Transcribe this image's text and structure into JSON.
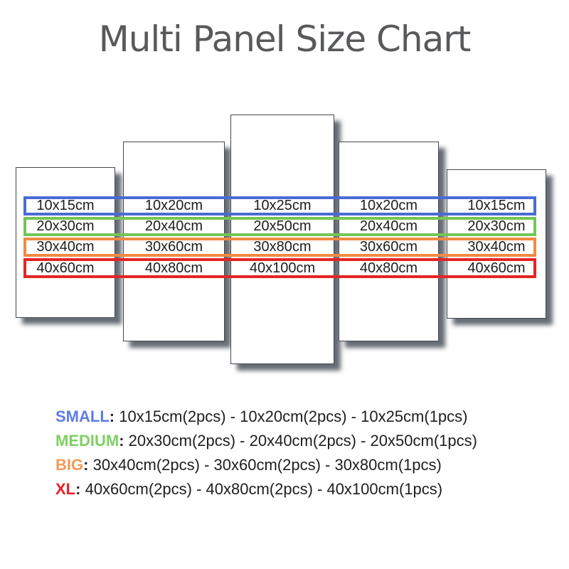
{
  "title": "Multi Panel Size Chart",
  "colors": {
    "title_text": "#58595b",
    "cell_text": "#1d1d1d",
    "panel_border": "#46484d",
    "band_small": "#4b6bd5",
    "band_medium": "#72c655",
    "band_big": "#f08a43",
    "band_xl": "#e42525",
    "legend_small": "#5d7ce4",
    "legend_medium": "#7ed063",
    "legend_big": "#f39a5a",
    "legend_xl": "#ec1c24"
  },
  "bands": [
    {
      "id": "small",
      "cells": [
        "10x15cm",
        "10x20cm",
        "10x25cm",
        "10x20cm",
        "10x15cm"
      ]
    },
    {
      "id": "medium",
      "cells": [
        "20x30cm",
        "20x40cm",
        "20x50cm",
        "20x40cm",
        "20x30cm"
      ]
    },
    {
      "id": "big",
      "cells": [
        "30x40cm",
        "30x60cm",
        "30x80cm",
        "30x60cm",
        "30x40cm"
      ]
    },
    {
      "id": "xl",
      "cells": [
        "40x60cm",
        "40x80cm",
        "40x100cm",
        "40x80cm",
        "40x60cm"
      ]
    }
  ],
  "legend": {
    "separator": ": ",
    "rows": [
      {
        "id": "small",
        "label": "SMALL",
        "sizes": "10x15cm(2pcs) - 10x20cm(2pcs) - 10x25cm(1pcs)"
      },
      {
        "id": "medium",
        "label": "MEDIUM",
        "sizes": "20x30cm(2pcs) - 20x40cm(2pcs) - 20x50cm(1pcs)"
      },
      {
        "id": "big",
        "label": "BIG",
        "sizes": "30x40cm(2pcs) - 30x60cm(2pcs) - 30x80cm(1pcs)"
      },
      {
        "id": "xl",
        "label": "XL",
        "sizes": "40x60cm(2pcs) - 40x80cm(2pcs) - 40x100cm(1pcs)"
      }
    ]
  }
}
